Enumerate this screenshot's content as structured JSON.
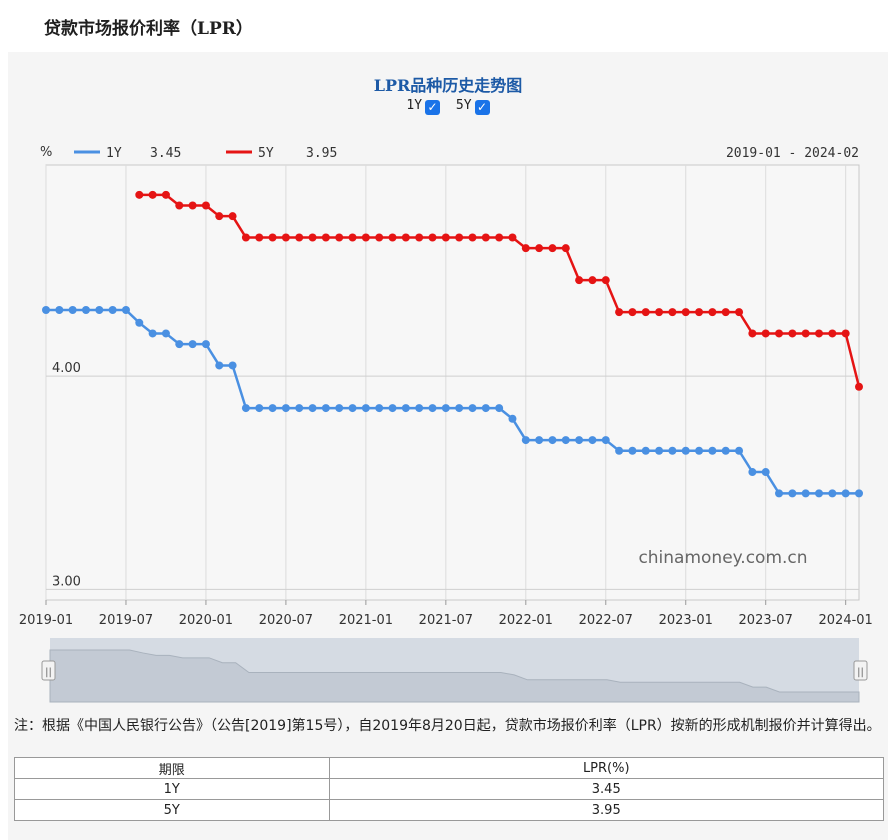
{
  "page_title": "贷款市场报价利率（LPR）",
  "chart_title": "LPR品种历史走势图",
  "toggles": [
    {
      "label": "1Y",
      "checked": true
    },
    {
      "label": "5Y",
      "checked": true
    }
  ],
  "legend": {
    "unit": "%",
    "items": [
      {
        "name": "1Y",
        "value": "3.45",
        "color": "#4a90e2"
      },
      {
        "name": "5Y",
        "value": "3.95",
        "color": "#e51414"
      }
    ],
    "range": "2019-01 - 2024-02"
  },
  "watermark": "chinamoney.com.cn",
  "navigator_handles": [
    "||",
    "||"
  ],
  "chart_data": {
    "type": "line",
    "y_ticks": [
      "4.00",
      "3.00"
    ],
    "ylim": [
      2.95,
      4.99
    ],
    "x_ticks": [
      "2019-01",
      "2019-07",
      "2020-01",
      "2020-07",
      "2021-01",
      "2021-07",
      "2022-01",
      "2022-07",
      "2023-01",
      "2023-07",
      "2024-01"
    ],
    "x": [
      "2019-01",
      "2019-02",
      "2019-03",
      "2019-04",
      "2019-05",
      "2019-06",
      "2019-07",
      "2019-08",
      "2019-09",
      "2019-10",
      "2019-11",
      "2019-12",
      "2020-01",
      "2020-02",
      "2020-03",
      "2020-04",
      "2020-05",
      "2020-06",
      "2020-07",
      "2020-08",
      "2020-09",
      "2020-10",
      "2020-11",
      "2020-12",
      "2021-01",
      "2021-02",
      "2021-03",
      "2021-04",
      "2021-05",
      "2021-06",
      "2021-07",
      "2021-08",
      "2021-09",
      "2021-10",
      "2021-11",
      "2021-12",
      "2022-01",
      "2022-02",
      "2022-03",
      "2022-04",
      "2022-05",
      "2022-06",
      "2022-07",
      "2022-08",
      "2022-09",
      "2022-10",
      "2022-11",
      "2022-12",
      "2023-01",
      "2023-02",
      "2023-03",
      "2023-04",
      "2023-05",
      "2023-06",
      "2023-07",
      "2023-08",
      "2023-09",
      "2023-10",
      "2023-11",
      "2023-12",
      "2024-01",
      "2024-02"
    ],
    "series": [
      {
        "name": "1Y",
        "color": "#4a90e2",
        "values": [
          4.31,
          4.31,
          4.31,
          4.31,
          4.31,
          4.31,
          4.31,
          4.25,
          4.2,
          4.2,
          4.15,
          4.15,
          4.15,
          4.05,
          4.05,
          3.85,
          3.85,
          3.85,
          3.85,
          3.85,
          3.85,
          3.85,
          3.85,
          3.85,
          3.85,
          3.85,
          3.85,
          3.85,
          3.85,
          3.85,
          3.85,
          3.85,
          3.85,
          3.85,
          3.85,
          3.8,
          3.7,
          3.7,
          3.7,
          3.7,
          3.7,
          3.7,
          3.7,
          3.65,
          3.65,
          3.65,
          3.65,
          3.65,
          3.65,
          3.65,
          3.65,
          3.65,
          3.65,
          3.55,
          3.55,
          3.45,
          3.45,
          3.45,
          3.45,
          3.45,
          3.45,
          3.45
        ]
      },
      {
        "name": "5Y",
        "color": "#e51414",
        "values": [
          null,
          null,
          null,
          null,
          null,
          null,
          null,
          4.85,
          4.85,
          4.85,
          4.8,
          4.8,
          4.8,
          4.75,
          4.75,
          4.65,
          4.65,
          4.65,
          4.65,
          4.65,
          4.65,
          4.65,
          4.65,
          4.65,
          4.65,
          4.65,
          4.65,
          4.65,
          4.65,
          4.65,
          4.65,
          4.65,
          4.65,
          4.65,
          4.65,
          4.65,
          4.6,
          4.6,
          4.6,
          4.6,
          4.45,
          4.45,
          4.45,
          4.3,
          4.3,
          4.3,
          4.3,
          4.3,
          4.3,
          4.3,
          4.3,
          4.3,
          4.3,
          4.2,
          4.2,
          4.2,
          4.2,
          4.2,
          4.2,
          4.2,
          4.2,
          3.95
        ]
      }
    ]
  },
  "note": "注：根据《中国人民银行公告》（公告[2019]第15号），自2019年8月20日起，贷款市场报价利率（LPR）按新的形成机制报价并计算得出。",
  "table": {
    "headers": [
      "期限",
      "LPR(%)"
    ],
    "rows": [
      [
        "1Y",
        "3.45"
      ],
      [
        "5Y",
        "3.95"
      ]
    ]
  }
}
